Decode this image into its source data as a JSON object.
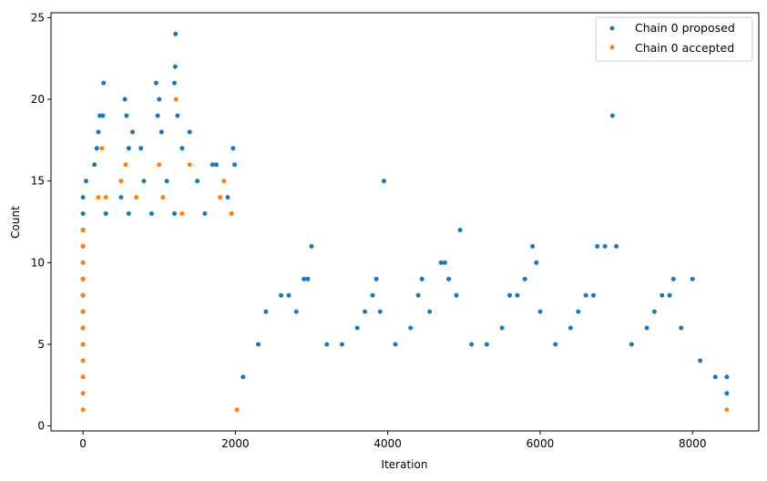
{
  "chart_data": {
    "type": "scatter",
    "xlabel": "Iteration",
    "ylabel": "Count",
    "xlim": [
      -420,
      8870
    ],
    "ylim": [
      -0.3,
      25.3
    ],
    "xticks": [
      0,
      2000,
      4000,
      6000,
      8000
    ],
    "yticks": [
      0,
      5,
      10,
      15,
      20,
      25
    ],
    "xtick_labels": [
      "0",
      "2000",
      "4000",
      "6000",
      "8000"
    ],
    "ytick_labels": [
      "0",
      "5",
      "10",
      "15",
      "20",
      "25"
    ],
    "legend_position": "top-right",
    "series": [
      {
        "name": "Chain 0 proposed",
        "color": "#1f77b4",
        "points": [
          [
            0,
            5
          ],
          [
            0,
            6
          ],
          [
            0,
            7
          ],
          [
            0,
            8
          ],
          [
            0,
            9
          ],
          [
            0,
            10
          ],
          [
            0,
            11
          ],
          [
            0,
            12
          ],
          [
            0,
            13
          ],
          [
            0,
            14
          ],
          [
            40,
            15
          ],
          [
            150,
            16
          ],
          [
            180,
            17
          ],
          [
            200,
            18
          ],
          [
            220,
            19
          ],
          [
            260,
            19
          ],
          [
            270,
            21
          ],
          [
            550,
            20
          ],
          [
            570,
            19
          ],
          [
            600,
            17
          ],
          [
            650,
            18
          ],
          [
            760,
            17
          ],
          [
            960,
            21
          ],
          [
            980,
            19
          ],
          [
            1000,
            20
          ],
          [
            1030,
            18
          ],
          [
            1200,
            21
          ],
          [
            1210,
            22
          ],
          [
            1215,
            24
          ],
          [
            1240,
            19
          ],
          [
            1300,
            17
          ],
          [
            1400,
            18
          ],
          [
            1700,
            16
          ],
          [
            1750,
            16
          ],
          [
            1970,
            17
          ],
          [
            1990,
            16
          ],
          [
            500,
            14
          ],
          [
            800,
            15
          ],
          [
            1100,
            15
          ],
          [
            1500,
            15
          ],
          [
            1900,
            14
          ],
          [
            300,
            13
          ],
          [
            600,
            13
          ],
          [
            900,
            13
          ],
          [
            1200,
            13
          ],
          [
            1600,
            13
          ],
          [
            1950,
            13
          ],
          [
            2100,
            3
          ],
          [
            2300,
            5
          ],
          [
            2400,
            7
          ],
          [
            2600,
            8
          ],
          [
            2700,
            8
          ],
          [
            2800,
            7
          ],
          [
            2900,
            9
          ],
          [
            2950,
            9
          ],
          [
            3000,
            11
          ],
          [
            3200,
            5
          ],
          [
            3400,
            5
          ],
          [
            3600,
            6
          ],
          [
            3700,
            7
          ],
          [
            3800,
            8
          ],
          [
            3850,
            9
          ],
          [
            3900,
            7
          ],
          [
            3950,
            15
          ],
          [
            4100,
            5
          ],
          [
            4300,
            6
          ],
          [
            4400,
            8
          ],
          [
            4450,
            9
          ],
          [
            4550,
            7
          ],
          [
            4700,
            10
          ],
          [
            4750,
            10
          ],
          [
            4800,
            9
          ],
          [
            4900,
            8
          ],
          [
            4950,
            12
          ],
          [
            5100,
            5
          ],
          [
            5300,
            5
          ],
          [
            5500,
            6
          ],
          [
            5600,
            8
          ],
          [
            5700,
            8
          ],
          [
            5800,
            9
          ],
          [
            5900,
            11
          ],
          [
            5950,
            10
          ],
          [
            6000,
            7
          ],
          [
            6200,
            5
          ],
          [
            6400,
            6
          ],
          [
            6500,
            7
          ],
          [
            6600,
            8
          ],
          [
            6700,
            8
          ],
          [
            6750,
            11
          ],
          [
            6850,
            11
          ],
          [
            6950,
            19
          ],
          [
            7000,
            11
          ],
          [
            7200,
            5
          ],
          [
            7400,
            6
          ],
          [
            7500,
            7
          ],
          [
            7600,
            8
          ],
          [
            7700,
            8
          ],
          [
            7750,
            9
          ],
          [
            7850,
            6
          ],
          [
            8000,
            9
          ],
          [
            8100,
            4
          ],
          [
            8300,
            3
          ],
          [
            8450,
            3
          ],
          [
            8450,
            2
          ]
        ]
      },
      {
        "name": "Chain 0 accepted",
        "color": "#ff7f0e",
        "points": [
          [
            0,
            1
          ],
          [
            0,
            2
          ],
          [
            0,
            3
          ],
          [
            0,
            4
          ],
          [
            0,
            5
          ],
          [
            0,
            6
          ],
          [
            0,
            7
          ],
          [
            0,
            8
          ],
          [
            0,
            9
          ],
          [
            0,
            10
          ],
          [
            0,
            11
          ],
          [
            0,
            12
          ],
          [
            200,
            14
          ],
          [
            250,
            17
          ],
          [
            300,
            14
          ],
          [
            500,
            15
          ],
          [
            560,
            16
          ],
          [
            700,
            14
          ],
          [
            1000,
            16
          ],
          [
            1050,
            14
          ],
          [
            1220,
            20
          ],
          [
            1300,
            13
          ],
          [
            1400,
            16
          ],
          [
            1800,
            14
          ],
          [
            1850,
            15
          ],
          [
            1950,
            13
          ],
          [
            2020,
            1
          ],
          [
            8450,
            1
          ]
        ]
      }
    ]
  }
}
